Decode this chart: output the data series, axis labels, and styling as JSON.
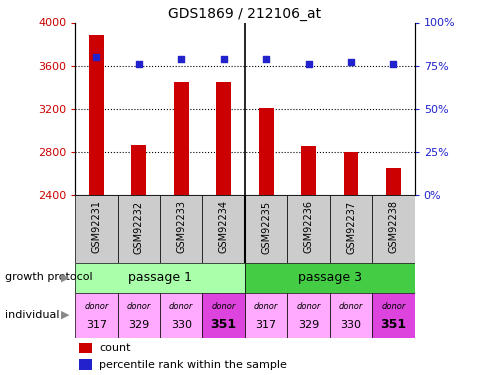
{
  "title": "GDS1869 / 212106_at",
  "samples": [
    "GSM92231",
    "GSM92232",
    "GSM92233",
    "GSM92234",
    "GSM92235",
    "GSM92236",
    "GSM92237",
    "GSM92238"
  ],
  "counts": [
    3880,
    2860,
    3450,
    3450,
    3210,
    2850,
    2800,
    2650
  ],
  "percentile_ranks": [
    80,
    76,
    79,
    79,
    79,
    76,
    77,
    76
  ],
  "ylim_left": [
    2400,
    4000
  ],
  "ylim_right": [
    0,
    100
  ],
  "yticks_left": [
    2400,
    2800,
    3200,
    3600,
    4000
  ],
  "yticks_right": [
    0,
    25,
    50,
    75,
    100
  ],
  "bar_color": "#cc0000",
  "dot_color": "#2222cc",
  "passage_1_color": "#aaffaa",
  "passage_3_color": "#44cc44",
  "passage_1_label": "passage 1",
  "passage_3_label": "passage 3",
  "individuals": [
    "donor\n317",
    "donor\n329",
    "donor\n330",
    "donor\n351",
    "donor\n317",
    "donor\n329",
    "donor\n330",
    "donor\n351"
  ],
  "individual_highlight": [
    3,
    7
  ],
  "individual_color_normal": "#ffaaff",
  "individual_color_highlight": "#dd44dd",
  "xlabel_label": "growth protocol",
  "individual_label": "individual",
  "legend_count": "count",
  "legend_percentile": "percentile rank within the sample",
  "label_color_left": "#cc0000",
  "label_color_right": "#2222cc",
  "xlabels_bg": "#cccccc",
  "grid_yticks": [
    2800,
    3200,
    3600
  ],
  "bar_width": 0.35
}
